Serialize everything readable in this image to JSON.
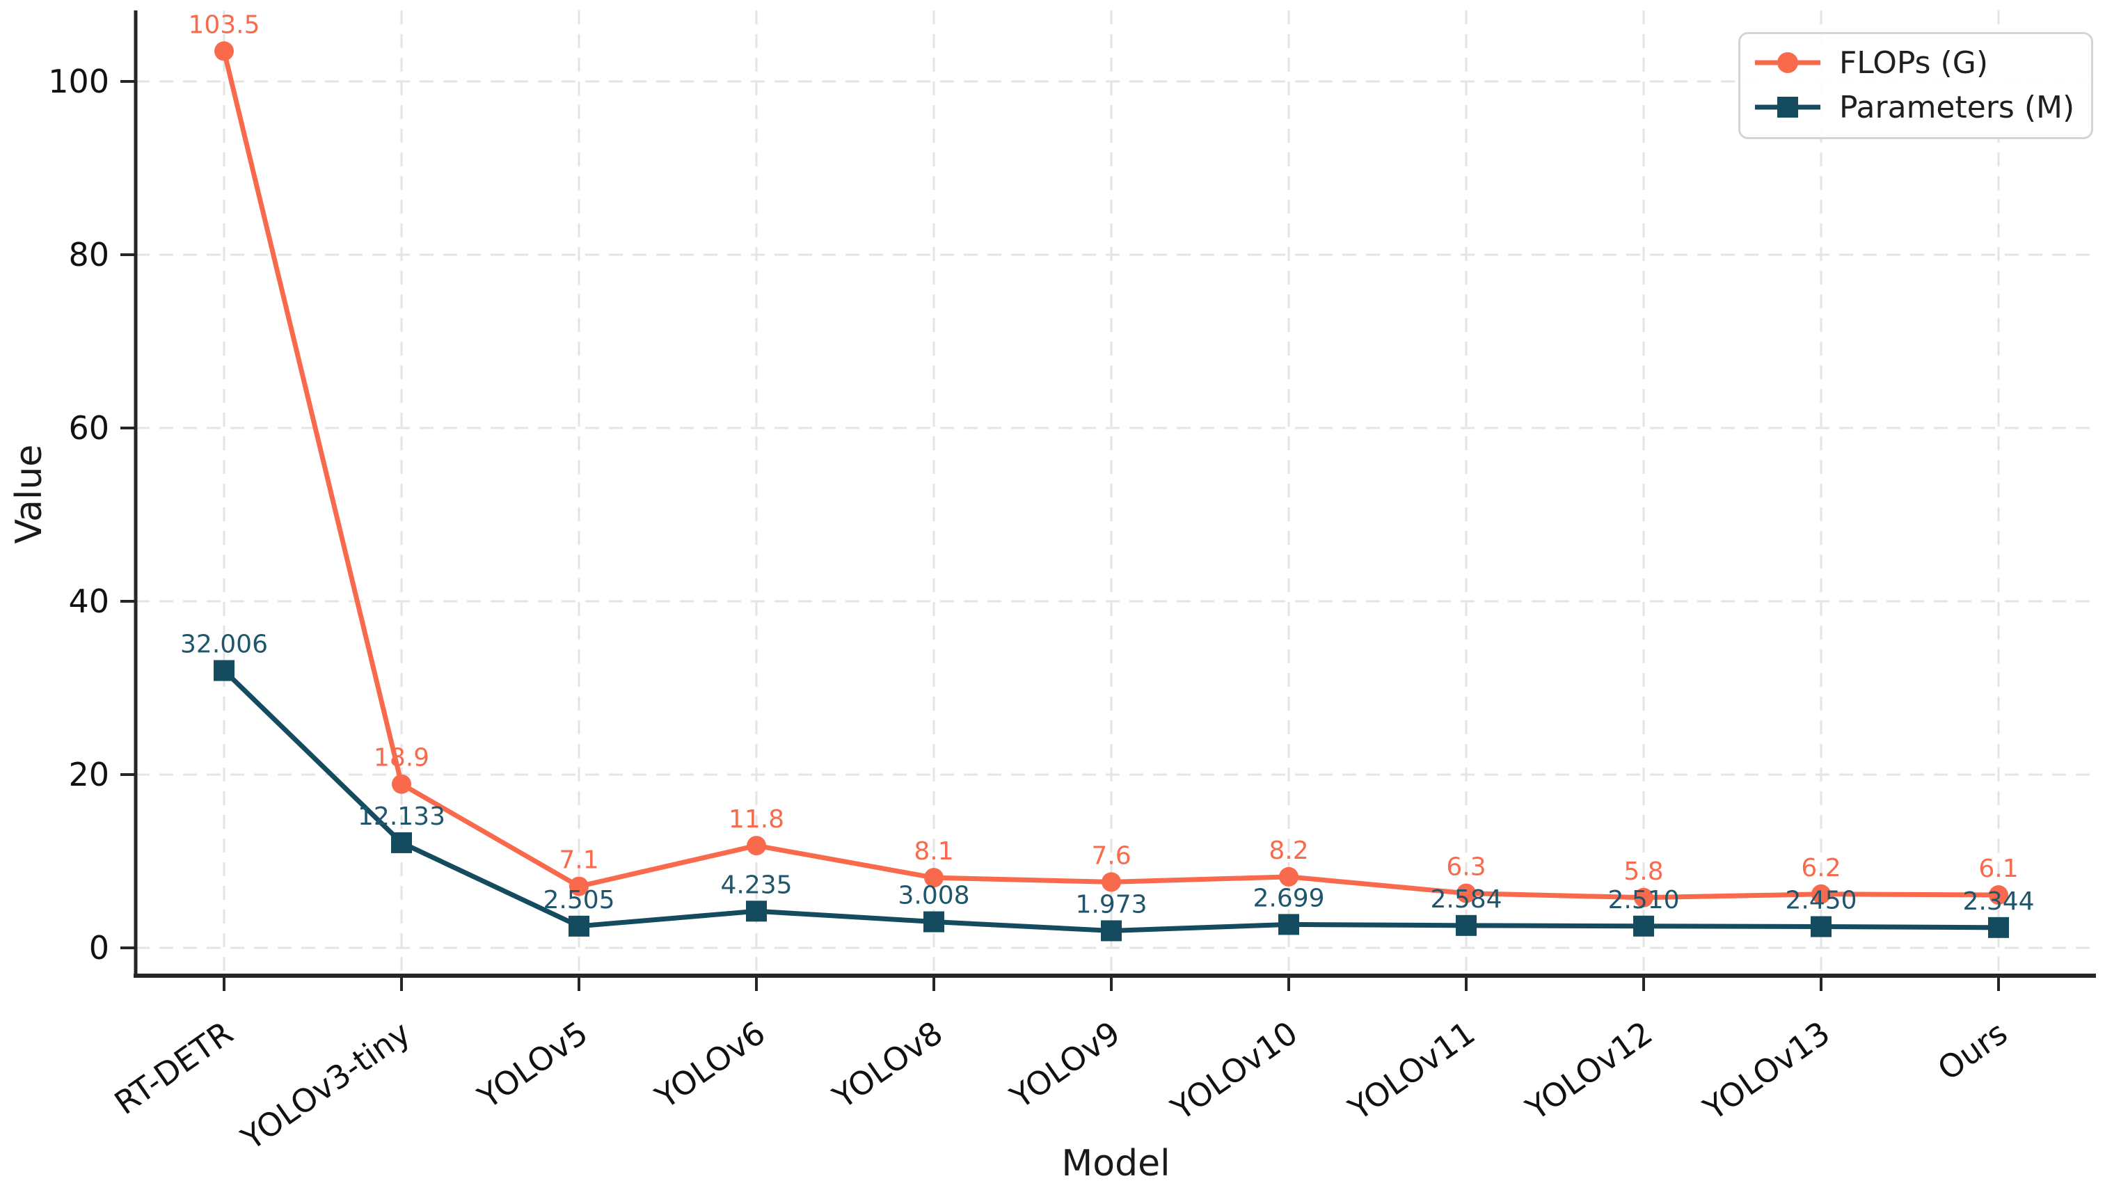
{
  "figure": {
    "background": "#ffffff"
  },
  "chart_data": {
    "type": "line",
    "title": "",
    "xlabel": "Model",
    "ylabel": "Value",
    "categories": [
      "RT-DETR",
      "YOLOv3-tiny",
      "YOLOv5",
      "YOLOv6",
      "YOLOv8",
      "YOLOv9",
      "YOLOv10",
      "YOLOv11",
      "YOLOv12",
      "YOLOv13",
      "Ours"
    ],
    "series": [
      {
        "name": "FLOPs (G)",
        "marker": "circle",
        "color": "#F96A4D",
        "label_color": "#F96A4D",
        "values": [
          103.5,
          18.9,
          7.1,
          11.8,
          8.1,
          7.6,
          8.2,
          6.3,
          5.8,
          6.2,
          6.1
        ],
        "labels": [
          "103.5",
          "18.9",
          "7.1",
          "11.8",
          "8.1",
          "7.6",
          "8.2",
          "6.3",
          "5.8",
          "6.2",
          "6.1"
        ]
      },
      {
        "name": "Parameters (M)",
        "marker": "square",
        "color": "#154B5F",
        "label_color": "#20566B",
        "values": [
          32.006,
          12.133,
          2.505,
          4.235,
          3.008,
          1.973,
          2.699,
          2.584,
          2.51,
          2.45,
          2.344
        ],
        "labels": [
          "32.006",
          "12.133",
          "2.505",
          "4.235",
          "3.008",
          "1.973",
          "2.699",
          "2.584",
          "2.510",
          "2.450",
          "2.344"
        ]
      }
    ],
    "yticks": [
      0,
      20,
      40,
      60,
      80,
      100
    ],
    "ylim": [
      -3.2,
      108.3
    ],
    "grid": "dashed",
    "legend_position": "upper right"
  }
}
